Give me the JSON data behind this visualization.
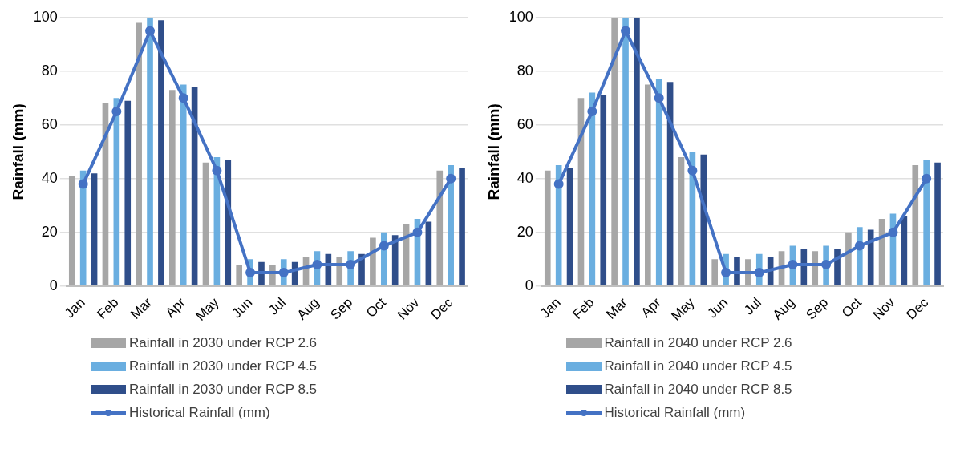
{
  "chart_data": [
    {
      "type": "bar",
      "ylabel": "Rainfall (mm)",
      "categories": [
        "Jan",
        "Feb",
        "Mar",
        "Apr",
        "May",
        "Jun",
        "Jul",
        "Aug",
        "Sep",
        "Oct",
        "Nov",
        "Dec"
      ],
      "ylim": [
        0,
        100
      ],
      "yticks": [
        0,
        20,
        40,
        60,
        80,
        100
      ],
      "grid": "y",
      "legend": "bottom",
      "series": [
        {
          "name": "Rainfall in 2030 under RCP 2.6",
          "color": "#a6a6a6",
          "values": [
            41,
            68,
            98,
            73,
            46,
            8,
            8,
            11,
            11,
            18,
            23,
            43
          ]
        },
        {
          "name": "Rainfall in 2030 under RCP 4.5",
          "color": "#6aaee0",
          "values": [
            43,
            70,
            100,
            75,
            48,
            10,
            10,
            13,
            13,
            20,
            25,
            45
          ]
        },
        {
          "name": "Rainfall in 2030 under RCP 8.5",
          "color": "#2f4e8a",
          "values": [
            42,
            69,
            99,
            74,
            47,
            9,
            9,
            12,
            12,
            19,
            24,
            44
          ]
        },
        {
          "name": "Historical Rainfall (mm)",
          "type": "line",
          "color": "#4472c4",
          "marker": "circle",
          "line_style": "solid",
          "values": [
            38,
            65,
            95,
            70,
            43,
            5,
            5,
            8,
            8,
            15,
            20,
            40
          ]
        }
      ]
    },
    {
      "type": "bar",
      "ylabel": "Rainfall (mm)",
      "categories": [
        "Jan",
        "Feb",
        "Mar",
        "Apr",
        "May",
        "Jun",
        "Jul",
        "Aug",
        "Sep",
        "Oct",
        "Nov",
        "Dec"
      ],
      "ylim": [
        0,
        100
      ],
      "yticks": [
        0,
        20,
        40,
        60,
        80,
        100
      ],
      "grid": "y",
      "legend": "bottom",
      "series": [
        {
          "name": "Rainfall in 2040 under RCP 2.6",
          "color": "#a6a6a6",
          "values": [
            43,
            70,
            100,
            75,
            48,
            10,
            10,
            13,
            13,
            20,
            25,
            45
          ]
        },
        {
          "name": "Rainfall in 2040 under RCP 4.5",
          "color": "#6aaee0",
          "values": [
            45,
            72,
            100,
            77,
            50,
            12,
            12,
            15,
            15,
            22,
            27,
            47
          ]
        },
        {
          "name": "Rainfall in 2040 under RCP 8.5",
          "color": "#2f4e8a",
          "values": [
            44,
            71,
            100,
            76,
            49,
            11,
            11,
            14,
            14,
            21,
            26,
            46
          ]
        },
        {
          "name": "Historical Rainfall (mm)",
          "type": "line",
          "color": "#4472c4",
          "marker": "circle",
          "line_style": "solid",
          "values": [
            38,
            65,
            95,
            70,
            43,
            5,
            5,
            8,
            8,
            15,
            20,
            40
          ]
        }
      ]
    }
  ]
}
